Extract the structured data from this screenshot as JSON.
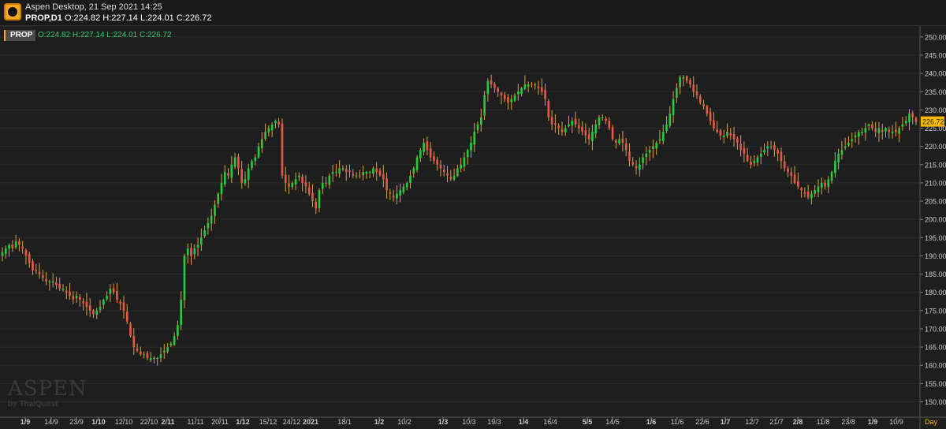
{
  "window": {
    "title": "Aspen Desktop, 21 Sep 2021 14:25",
    "symbol_tf": "PROP,D1",
    "ohlc_text": "O:224.82 H:227.14 L:224.01 C:226.72"
  },
  "legend": {
    "symbol": "PROP",
    "ohlc": "O:224.82  H:227.14  L:224.01  C:226.72"
  },
  "watermark": {
    "brand": "ASPEN",
    "sub": "by ThaiQuest"
  },
  "colors": {
    "up": "#27c93f",
    "down": "#e9574a",
    "bg": "#1e1e1e",
    "grid": "#2a2a2a",
    "axis_text": "#cccccc",
    "last_price_bg": "#f5b800",
    "timeframe_label": "#f5b800"
  },
  "chart_data": {
    "type": "candlestick",
    "symbol": "PROP",
    "timeframe": "Day",
    "last_price": "226.72",
    "ylim": [
      146,
      253
    ],
    "y_ticks": [
      150,
      155,
      160,
      165,
      170,
      175,
      180,
      185,
      190,
      195,
      200,
      205,
      210,
      215,
      220,
      225,
      230,
      235,
      240,
      245,
      250
    ],
    "x_tick_labels": [
      "1/9",
      "14/9",
      "23/9",
      "1/10",
      "12/10",
      "22/10",
      "2/11",
      "11/11",
      "20/11",
      "1/12",
      "15/12",
      "24/12",
      "2021",
      "18/1",
      "1/2",
      "10/2",
      "1/3",
      "10/3",
      "19/3",
      "1/4",
      "16/4",
      "5/5",
      "14/5",
      "1/6",
      "11/6",
      "22/6",
      "1/7",
      "12/7",
      "21/7",
      "2/8",
      "11/8",
      "23/8",
      "1/9",
      "10/9"
    ],
    "bold_tick_labels": [
      "1/9",
      "1/10",
      "2/11",
      "1/12",
      "2021",
      "1/2",
      "1/3",
      "1/4",
      "5/5",
      "1/6",
      "1/7",
      "2/8",
      "1/9"
    ],
    "closes": [
      191,
      192,
      193,
      192,
      194,
      193,
      192,
      190,
      188,
      186,
      186,
      185,
      184,
      183,
      183,
      183,
      182,
      181,
      181,
      180,
      179,
      178,
      179,
      178,
      177,
      176,
      175,
      174,
      175,
      176,
      178,
      179,
      181,
      180,
      178,
      177,
      175,
      172,
      168,
      165,
      164,
      163,
      163,
      162,
      162,
      162,
      162,
      163,
      164,
      165,
      166,
      168,
      171,
      178,
      190,
      192,
      190,
      192,
      193,
      195,
      197,
      199,
      201,
      204,
      207,
      210,
      213,
      212,
      215,
      217,
      214,
      210,
      211,
      214,
      216,
      217,
      220,
      222,
      224,
      225,
      226,
      227,
      226,
      212,
      210,
      209,
      210,
      211,
      212,
      210,
      209,
      207,
      205,
      203,
      208,
      210,
      210,
      212,
      213,
      213,
      214,
      214,
      213,
      213,
      212,
      212,
      212,
      213,
      213,
      213,
      214,
      213,
      212,
      211,
      208,
      207,
      206,
      207,
      208,
      209,
      210,
      212,
      214,
      217,
      219,
      221,
      219,
      217,
      216,
      215,
      214,
      213,
      212,
      211,
      212,
      214,
      215,
      217,
      219,
      221,
      224,
      226,
      228,
      234,
      238,
      237,
      236,
      235,
      234,
      233,
      232,
      233,
      234,
      235,
      236,
      237,
      237,
      237,
      237,
      236,
      235,
      233,
      228,
      226,
      226,
      225,
      224,
      225,
      226,
      227,
      226,
      225,
      224,
      223,
      222,
      224,
      226,
      228,
      228,
      227,
      225,
      222,
      221,
      222,
      221,
      219,
      216,
      215,
      214,
      215,
      217,
      218,
      219,
      220,
      221,
      222,
      224,
      226,
      229,
      233,
      236,
      239,
      239,
      238,
      237,
      235,
      234,
      232,
      231,
      229,
      227,
      225,
      224,
      223,
      223,
      224,
      223,
      222,
      221,
      219,
      218,
      216,
      215,
      216,
      217,
      218,
      219,
      220,
      220,
      219,
      218,
      216,
      214,
      213,
      212,
      210,
      209,
      208,
      207,
      206,
      207,
      208,
      209,
      210,
      209,
      211,
      213,
      216,
      218,
      219,
      220,
      221,
      222,
      223,
      224,
      224,
      225,
      226,
      225,
      224,
      225,
      224,
      225,
      224,
      224,
      224,
      225,
      226,
      227,
      229,
      228,
      226.72
    ]
  }
}
